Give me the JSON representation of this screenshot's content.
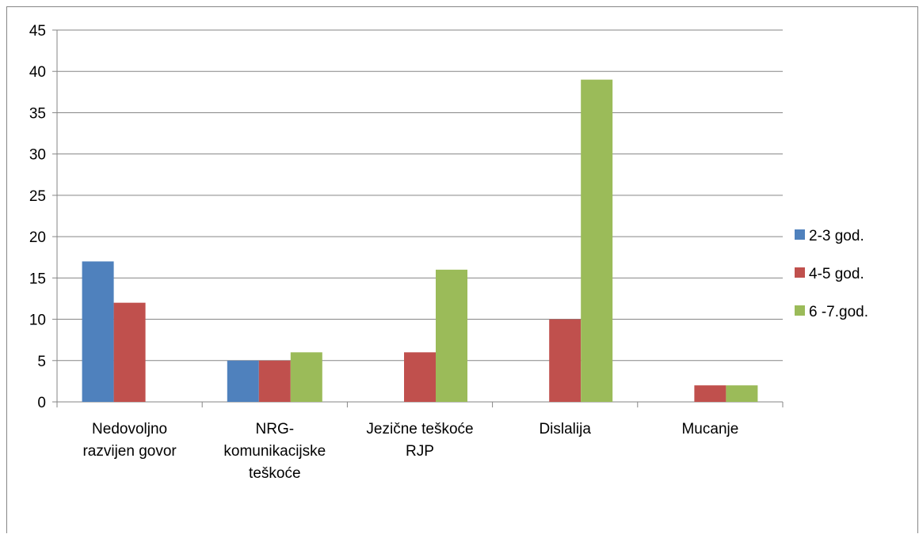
{
  "chart_data": {
    "type": "bar",
    "categories": [
      [
        "Nedovoljno",
        "razvijen govor"
      ],
      [
        "NRG-",
        "komunikacijske",
        "teškoće"
      ],
      [
        "Jezične teškoće",
        "RJP"
      ],
      [
        "Dislalija"
      ],
      [
        "Mucanje"
      ]
    ],
    "series": [
      {
        "name": "2-3 god.",
        "color": "#4F81BD",
        "values": [
          17,
          5,
          0,
          0,
          0
        ]
      },
      {
        "name": "4-5 god.",
        "color": "#C0504D",
        "values": [
          12,
          5,
          6,
          10,
          2
        ]
      },
      {
        "name": "6 -7.god.",
        "color": "#9BBB59",
        "values": [
          0,
          6,
          16,
          39,
          2
        ]
      }
    ],
    "ylim": [
      0,
      45
    ],
    "yticks": [
      0,
      5,
      10,
      15,
      20,
      25,
      30,
      35,
      40,
      45
    ],
    "grid": true,
    "legend": "right",
    "title": "",
    "xlabel": "",
    "ylabel": ""
  }
}
